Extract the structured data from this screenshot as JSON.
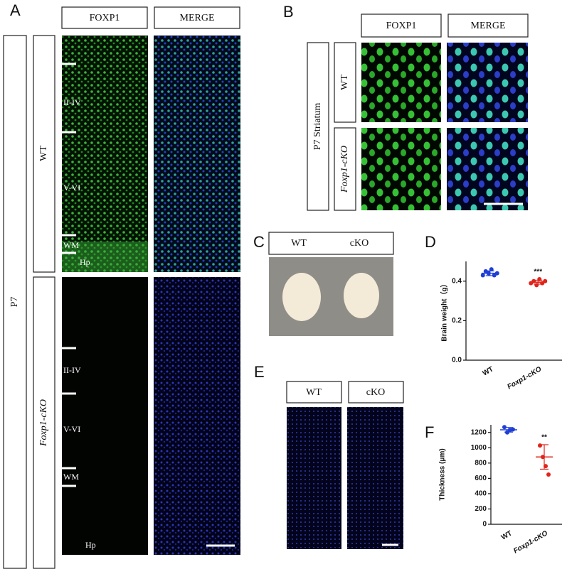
{
  "panel_labels": [
    "A",
    "B",
    "C",
    "D",
    "E",
    "F"
  ],
  "panel_a": {
    "headers": [
      "FOXP1",
      "MERGE"
    ],
    "age": "P7",
    "rows": [
      "WT",
      "Foxp1-cKO"
    ],
    "layers": [
      "II-IV",
      "V-VI",
      "WM",
      "Hp"
    ]
  },
  "panel_b": {
    "headers": [
      "FOXP1",
      "MERGE"
    ],
    "region": "P7 Striatum",
    "rows": [
      "WT",
      "Foxp1-cKO"
    ]
  },
  "panel_c": {
    "headers": [
      "WT",
      "cKO"
    ]
  },
  "panel_e": {
    "headers": [
      "WT",
      "cKO"
    ]
  },
  "chart_data": [
    {
      "type": "scatter",
      "y_label": "Brain weight（g）",
      "categories": [
        "WT",
        "Foxp1-cKO"
      ],
      "ylim": [
        0,
        0.5
      ],
      "yticks": [
        {
          "value": 0,
          "label": "0.0"
        },
        0.2,
        0.4
      ],
      "groups": [
        {
          "color": "#1f3fd6",
          "values": [
            0.43,
            0.45,
            0.44,
            0.46,
            0.43,
            0.44
          ],
          "mean": 0.44,
          "sd": 0.012
        },
        {
          "color": "#e0241b",
          "values": [
            0.39,
            0.4,
            0.38,
            0.41,
            0.39,
            0.4
          ],
          "mean": 0.395,
          "sd": 0.01
        }
      ],
      "annotation": "***"
    },
    {
      "type": "scatter",
      "y_label": "Thickness (μm)",
      "categories": [
        "WT",
        "Foxp1-cKO"
      ],
      "ylim": [
        0,
        1300
      ],
      "yticks": [
        0,
        200,
        400,
        600,
        800,
        1000,
        1200
      ],
      "groups": [
        {
          "color": "#1f3fd6",
          "values": [
            1270,
            1200,
            1230,
            1240
          ],
          "mean": 1235,
          "sd": 30
        },
        {
          "color": "#e0241b",
          "values": [
            1030,
            880,
            760,
            650
          ],
          "mean": 880,
          "sd": 160
        }
      ],
      "annotation": "**"
    }
  ]
}
